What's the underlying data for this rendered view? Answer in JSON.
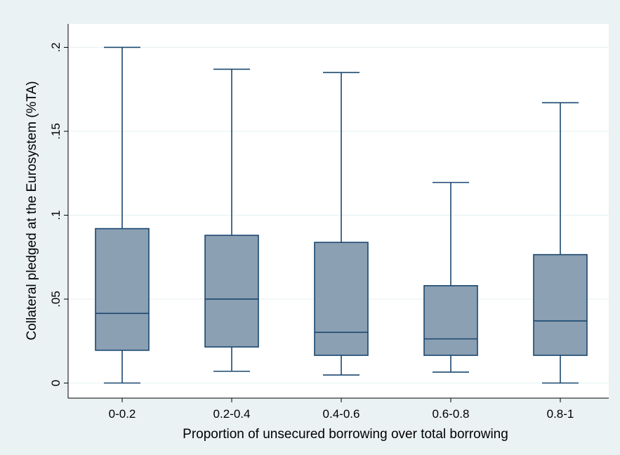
{
  "chart_data": {
    "type": "box",
    "categories": [
      "0-0.2",
      "0.2-0.4",
      "0.4-0.6",
      "0.6-0.8",
      "0.8-1"
    ],
    "boxes": [
      {
        "whisker_low": 0.0,
        "q1": 0.0195,
        "median": 0.0415,
        "q3": 0.092,
        "whisker_high": 0.2
      },
      {
        "whisker_low": 0.007,
        "q1": 0.0215,
        "median": 0.05,
        "q3": 0.088,
        "whisker_high": 0.187
      },
      {
        "whisker_low": 0.0048,
        "q1": 0.0165,
        "median": 0.0302,
        "q3": 0.0838,
        "whisker_high": 0.185
      },
      {
        "whisker_low": 0.0065,
        "q1": 0.0165,
        "median": 0.0263,
        "q3": 0.058,
        "whisker_high": 0.1195
      },
      {
        "whisker_low": 0.0,
        "q1": 0.0165,
        "median": 0.037,
        "q3": 0.0765,
        "whisker_high": 0.167
      }
    ],
    "ylim": [
      -0.009,
      0.214
    ],
    "yticks": [
      0,
      0.05,
      0.1,
      0.15,
      0.2
    ],
    "ytick_labels": [
      "0",
      ".05",
      ".1",
      ".15",
      ".2"
    ],
    "xlabel": "Proportion of unsecured borrowing over total borrowing",
    "ylabel": "Collateral pledged at the Eurosystem (%TA)",
    "grid": true,
    "colors": {
      "background": "#eaf2f3",
      "plot_area": "#ffffff",
      "box_fill": "#8ca0b3",
      "box_stroke": "#1a476f",
      "grid": "#eaf2f3",
      "text": "#000000"
    }
  }
}
